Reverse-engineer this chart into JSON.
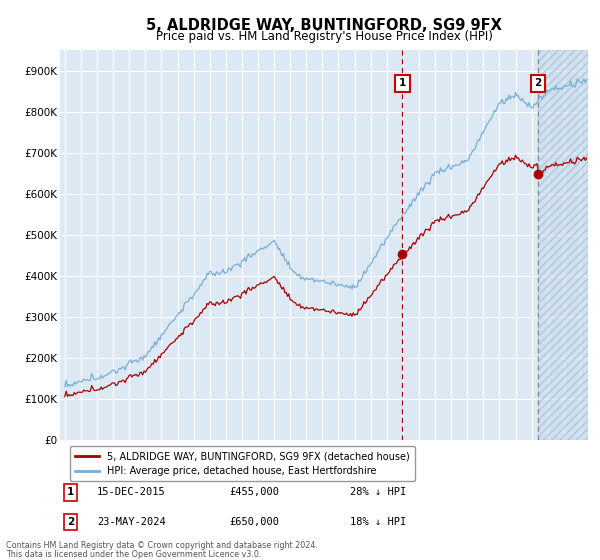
{
  "title": "5, ALDRIDGE WAY, BUNTINGFORD, SG9 9FX",
  "subtitle": "Price paid vs. HM Land Registry's House Price Index (HPI)",
  "title_fontsize": 11,
  "subtitle_fontsize": 9,
  "ylim": [
    0,
    950000
  ],
  "yticks": [
    0,
    100000,
    200000,
    300000,
    400000,
    500000,
    600000,
    700000,
    800000,
    900000
  ],
  "ytick_labels": [
    "£0",
    "£100K",
    "£200K",
    "£300K",
    "£400K",
    "£500K",
    "£600K",
    "£700K",
    "£800K",
    "£900K"
  ],
  "hpi_color": "#7aadd4",
  "price_color": "#aa0000",
  "sale1_date": "15-DEC-2015",
  "sale1_price": 455000,
  "sale1_label": "28% ↓ HPI",
  "sale2_date": "23-MAY-2024",
  "sale2_price": 650000,
  "sale2_label": "18% ↓ HPI",
  "legend_line1": "5, ALDRIDGE WAY, BUNTINGFORD, SG9 9FX (detached house)",
  "legend_line2": "HPI: Average price, detached house, East Hertfordshire",
  "footer1": "Contains HM Land Registry data © Crown copyright and database right 2024.",
  "footer2": "This data is licensed under the Open Government Licence v3.0.",
  "plot_bg_color": "#dce9f5",
  "hatch_color": "#c0d4e8",
  "grid_color": "#ffffff",
  "sale1_year_float": 2015.96,
  "sale2_year_float": 2024.38,
  "xstart": 1994.7,
  "xend": 2027.5
}
